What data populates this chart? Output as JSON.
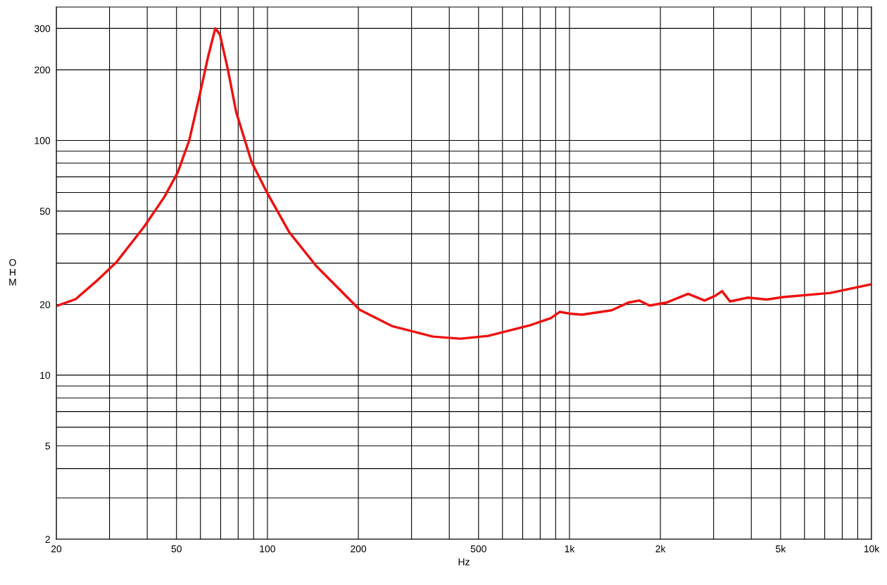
{
  "chart_data": {
    "type": "line",
    "xlabel": "Hz",
    "ylabel": "OHM",
    "log": "xy",
    "grid": true,
    "marker": "none",
    "line_style": "solid",
    "xlim": [
      20,
      10000
    ],
    "ylim": [
      2,
      370
    ],
    "xticks": [
      20,
      {
        "value": 30,
        "label": null
      },
      {
        "value": 40,
        "label": null
      },
      50,
      {
        "value": 60,
        "label": null
      },
      {
        "value": 70,
        "label": null
      },
      {
        "value": 80,
        "label": null
      },
      {
        "value": 90,
        "label": null
      },
      100,
      200,
      {
        "value": 300,
        "label": null
      },
      {
        "value": 400,
        "label": null
      },
      500,
      {
        "value": 600,
        "label": null
      },
      {
        "value": 700,
        "label": null
      },
      {
        "value": 800,
        "label": null
      },
      {
        "value": 900,
        "label": null
      },
      {
        "value": 1000,
        "label": "1k"
      },
      {
        "value": 2000,
        "label": "2k"
      },
      {
        "value": 3000,
        "label": null
      },
      {
        "value": 4000,
        "label": null
      },
      {
        "value": 5000,
        "label": "5k"
      },
      {
        "value": 6000,
        "label": null
      },
      {
        "value": 7000,
        "label": null
      },
      {
        "value": 8000,
        "label": null
      },
      {
        "value": 9000,
        "label": null
      },
      {
        "value": 10000,
        "label": "10k"
      }
    ],
    "yticks": [
      2,
      {
        "value": 3,
        "label": null
      },
      {
        "value": 4,
        "label": null
      },
      5,
      {
        "value": 6,
        "label": null
      },
      {
        "value": 7,
        "label": null
      },
      {
        "value": 8,
        "label": null
      },
      {
        "value": 9,
        "label": null
      },
      10,
      20,
      {
        "value": 30,
        "label": null
      },
      {
        "value": 40,
        "label": null
      },
      50,
      {
        "value": 60,
        "label": null
      },
      {
        "value": 70,
        "label": null
      },
      {
        "value": 80,
        "label": null
      },
      {
        "value": 90,
        "label": null
      },
      100,
      200,
      300
    ],
    "series": [
      {
        "color": "#ee1111",
        "x": [
          20,
          23.2,
          27.1,
          31.7,
          39.1,
          45.6,
          50.4,
          55.1,
          59.3,
          63.7,
          67.2,
          69.6,
          74,
          78.8,
          88.6,
          100,
          118,
          145,
          202,
          258,
          353,
          436,
          538,
          739,
          868,
          928,
          1000,
          1100,
          1380,
          1570,
          1700,
          1840,
          2100,
          2470,
          2800,
          3040,
          3200,
          3400,
          3900,
          4500,
          5100,
          7300,
          10000
        ],
        "values": [
          19.7,
          21.1,
          25.1,
          30.4,
          43,
          57.5,
          72.8,
          100,
          151,
          229,
          300,
          283,
          200,
          132,
          81,
          59.5,
          40.7,
          29.2,
          19,
          16.2,
          14.6,
          14.3,
          14.7,
          16.3,
          17.5,
          18.6,
          18.3,
          18.1,
          18.9,
          20.4,
          20.8,
          19.8,
          20.4,
          22.2,
          20.8,
          21.8,
          22.8,
          20.6,
          21.4,
          21,
          21.5,
          22.4,
          24.4
        ]
      }
    ]
  }
}
